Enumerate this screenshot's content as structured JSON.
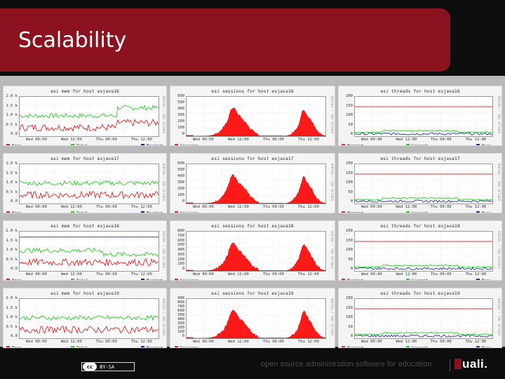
{
  "slide": {
    "title": "Scalability"
  },
  "x_ticks": [
    "Wed 00:00",
    "Wed 12:00",
    "Thu 00:00",
    "Thu 12:00"
  ],
  "rows": [
    {
      "host": "esjava16",
      "mem": {
        "title": "esi mem for host esjava16",
        "yticks": [
          "2.0 k",
          "1.5 k",
          "1.0 k",
          "0.5 k",
          "0.0"
        ],
        "legend": [
          "Free",
          "Total",
          "Maximum"
        ]
      },
      "sessions": {
        "title": "esi sessions for host esjava16",
        "yticks": [
          "600",
          "500",
          "400",
          "300",
          "200",
          "100",
          "0"
        ],
        "legend": [
          "Sessions"
        ]
      },
      "threads": {
        "title": "esi threads for host esjava16",
        "yticks": [
          "200",
          "150",
          "100",
          "50",
          "0"
        ],
        "legend": [
          "Maximum",
          "Current",
          "Busy"
        ]
      }
    },
    {
      "host": "esjava17",
      "mem": {
        "title": "esi mem for host esjava17",
        "yticks": [
          "2.0 k",
          "1.5 k",
          "1.0 k",
          "0.5 k",
          "0.0"
        ],
        "legend": [
          "Free",
          "Total",
          "Maximum"
        ]
      },
      "sessions": {
        "title": "esi sessions for host esjava17",
        "yticks": [
          "600",
          "500",
          "400",
          "300",
          "200",
          "100",
          "0"
        ],
        "legend": [
          "Sessions"
        ]
      },
      "threads": {
        "title": "esi threads for host esjava17",
        "yticks": [
          "200",
          "150",
          "100",
          "50",
          "0"
        ],
        "legend": [
          "Maximum",
          "Current",
          "Busy"
        ]
      }
    },
    {
      "host": "esjava18",
      "mem": {
        "title": "esi mem for host esjava18",
        "yticks": [
          "2.0 k",
          "1.5 k",
          "1.0 k",
          "0.5 k",
          "0.0"
        ],
        "legend": [
          "Free",
          "Total",
          "Maximum"
        ]
      },
      "sessions": {
        "title": "esi sessions for host esjava18",
        "yticks": [
          "800",
          "700",
          "600",
          "500",
          "400",
          "300",
          "200",
          "100",
          "0"
        ],
        "legend": [
          "Sessions"
        ]
      },
      "threads": {
        "title": "esi threads for host esjava18",
        "yticks": [
          "200",
          "150",
          "100",
          "50",
          "0"
        ],
        "legend": [
          "Maximum",
          "Current",
          "Busy"
        ]
      }
    },
    {
      "host": "esjava19",
      "mem": {
        "title": "esi mem for host esjava19",
        "yticks": [
          "2.0 k",
          "1.5 k",
          "1.0 k",
          "0.5 k",
          "0.0"
        ],
        "legend": [
          "Free",
          "Total",
          "Maximum"
        ]
      },
      "sessions": {
        "title": "esi sessions for host esjava19",
        "yticks": [
          "900",
          "800",
          "700",
          "600",
          "500",
          "400",
          "300",
          "200",
          "100",
          "0"
        ],
        "legend": [
          "Sessions"
        ]
      },
      "threads": {
        "title": "esi threads for host esjava19",
        "yticks": [
          "200",
          "150",
          "100",
          "50",
          "0"
        ],
        "legend": [
          "Maximum",
          "Current",
          "Busy"
        ]
      }
    }
  ],
  "side_label": "RRDTOOL / TOBI OETIKER",
  "colors": {
    "free": "#e02020",
    "total": "#22cc22",
    "maximum": "#1a1aa0",
    "sessions": "#ff1a1a",
    "thread_max": "#e03030",
    "current": "#22cc22",
    "busy": "#2233aa",
    "banner": "#8c1220"
  },
  "footer": {
    "license_badge": "cc",
    "license_text": "BY-SA",
    "tagline": "open source administration software for education",
    "logo": "uali."
  }
}
